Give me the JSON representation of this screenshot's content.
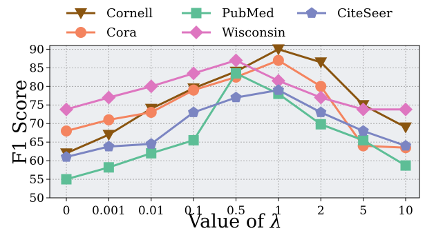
{
  "chart_data": {
    "type": "line",
    "categories": [
      "0",
      "0.001",
      "0.01",
      "0.1",
      "0.5",
      "1",
      "2",
      "5",
      "10"
    ],
    "xlabel_prefix": "Value of ",
    "xlabel_symbol": "λ",
    "ylabel": "F1 Score",
    "ylim": [
      50,
      91
    ],
    "yticks": [
      50,
      55,
      60,
      65,
      70,
      75,
      80,
      85,
      90
    ],
    "grid": true,
    "legend_position": "top",
    "series": [
      {
        "name": "Cornell",
        "color": "#8a5510",
        "marker": "triangle-down",
        "values": [
          62.0,
          67.0,
          74.0,
          79.5,
          84.0,
          90.0,
          86.5,
          75.0,
          69.0
        ]
      },
      {
        "name": "Cora",
        "color": "#f4845f",
        "marker": "circle",
        "values": [
          68.0,
          71.0,
          73.0,
          79.0,
          82.5,
          87.0,
          80.0,
          64.0,
          63.5
        ]
      },
      {
        "name": "PubMed",
        "color": "#5dbe96",
        "marker": "square",
        "values": [
          55.0,
          58.2,
          62.0,
          65.5,
          83.5,
          78.0,
          69.8,
          65.5,
          58.7
        ]
      },
      {
        "name": "Wisconsin",
        "color": "#de76c0",
        "marker": "diamond",
        "values": [
          73.8,
          77.0,
          80.0,
          83.5,
          87.0,
          81.5,
          77.0,
          73.8,
          73.8
        ]
      },
      {
        "name": "CiteSeer",
        "color": "#7b85c2",
        "marker": "pentagon",
        "values": [
          61.0,
          63.8,
          64.5,
          73.0,
          77.0,
          79.0,
          73.0,
          68.0,
          64.0
        ]
      }
    ]
  }
}
